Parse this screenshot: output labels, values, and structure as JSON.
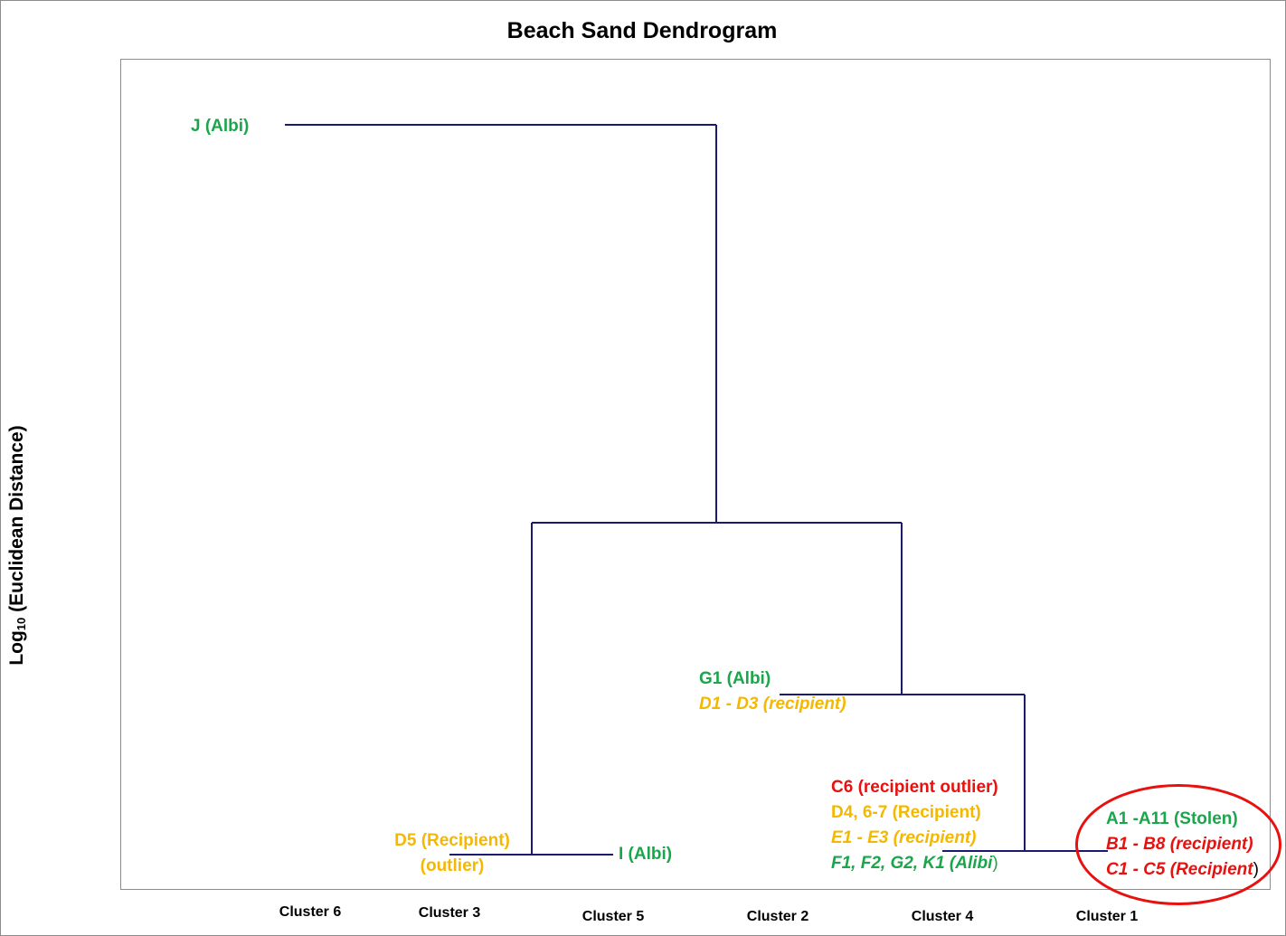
{
  "title": "Beach Sand Dendrogram",
  "y_axis_label": {
    "base": "Log",
    "subscript": "10",
    "rest": " (Euclidean Distance)"
  },
  "clusters": [
    "Cluster 6",
    "Cluster 3",
    "Cluster 5",
    "Cluster 2",
    "Cluster 4",
    "Cluster 1"
  ],
  "leaf_labels": {
    "j": "J (Albi)",
    "g1": "G1 (Albi)",
    "d1": "D1 - D3 (recipient)",
    "c6": "C6 (recipient outlier)",
    "d4": "D4, 6-7  (Recipient)",
    "e1": "E1 - E3 (recipient)",
    "f1": "F1, F2, G2, K1 (Alibi",
    "f1_close": ")",
    "d5_a": "D5 (Recipient)",
    "d5_b": "(outlier)",
    "i": "I (Albi)",
    "a1": "A1 -A11 (Stolen)",
    "b1": "B1 - B8 (recipient)",
    "c1": "C1 - C5 (Recipient",
    "c1_close": ")"
  },
  "colors": {
    "line": "#1a1a6e",
    "green": "#1aa64a",
    "orange": "#f5b800",
    "red": "#e8110f"
  }
}
